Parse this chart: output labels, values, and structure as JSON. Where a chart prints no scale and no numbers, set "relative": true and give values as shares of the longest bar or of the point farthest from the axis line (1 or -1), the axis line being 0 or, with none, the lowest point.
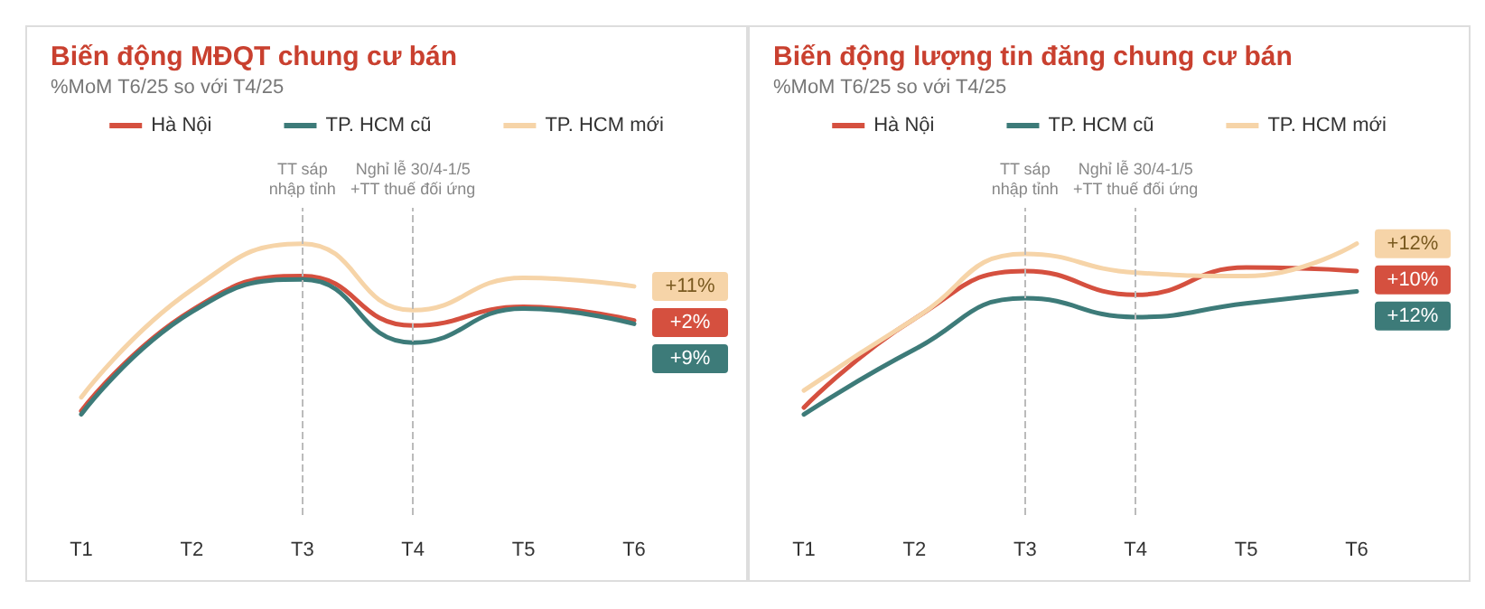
{
  "chart_data": [
    {
      "type": "line",
      "title": "Biến động MĐQT chung cư bán",
      "subtitle": "%MoM T6/25 so với T4/25",
      "relative": true,
      "legend": "top",
      "grid": false,
      "marker": "none",
      "line_style": "solid",
      "categories": [
        "T1",
        "T2",
        "T3",
        "T4",
        "T5",
        "T6"
      ],
      "series": [
        {
          "name": "Hà Nội",
          "color": "#d5503f",
          "values": [
            0.02,
            0.61,
            0.81,
            0.52,
            0.63,
            0.55
          ]
        },
        {
          "name": "TP. HCM cũ",
          "color": "#3d7b79",
          "values": [
            0,
            0.6,
            0.79,
            0.42,
            0.62,
            0.53
          ]
        },
        {
          "name": "TP. HCM mới",
          "color": "#f6d4a8",
          "values": [
            0.1,
            0.73,
            1,
            0.61,
            0.8,
            0.75
          ]
        }
      ],
      "annotations": [
        "+2%",
        "+9%",
        "+11%"
      ],
      "ref_lines": [
        {
          "axis": "x",
          "value": "T3",
          "label": "TT sáp\nnhập tỉnh"
        },
        {
          "axis": "x",
          "value": "T4",
          "label": "Nghỉ lễ 30/4-1/5\n+TT thuế đối ứng"
        }
      ]
    },
    {
      "type": "line",
      "title": "Biến động lượng tin đăng chung cư bán",
      "subtitle": "%MoM T6/25 so với T4/25",
      "relative": true,
      "legend": "top",
      "grid": false,
      "marker": "none",
      "line_style": "solid",
      "categories": [
        "T1",
        "T2",
        "T3",
        "T4",
        "T5",
        "T6"
      ],
      "series": [
        {
          "name": "Hà Nội",
          "color": "#d5503f",
          "values": [
            0.04,
            0.56,
            0.84,
            0.7,
            0.86,
            0.84
          ]
        },
        {
          "name": "TP. HCM cũ",
          "color": "#3d7b79",
          "values": [
            0,
            0.38,
            0.68,
            0.57,
            0.65,
            0.72
          ]
        },
        {
          "name": "TP. HCM mới",
          "color": "#f6d4a8",
          "values": [
            0.14,
            0.56,
            0.94,
            0.83,
            0.81,
            1
          ]
        }
      ],
      "annotations": [
        "+10%",
        "+12%",
        "+12%"
      ],
      "ref_lines": [
        {
          "axis": "x",
          "value": "T3",
          "label": "TT sáp\nnhập tỉnh"
        },
        {
          "axis": "x",
          "value": "T4",
          "label": "Nghỉ lễ 30/4-1/5\n+TT thuế đối ứng"
        }
      ]
    }
  ]
}
